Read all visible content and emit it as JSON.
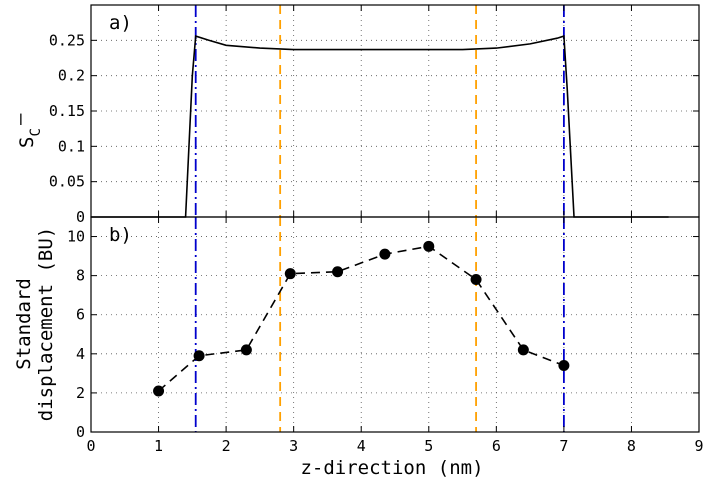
{
  "chart_data": [
    {
      "type": "line",
      "panel_label": "a)",
      "xlabel": "",
      "ylabel": "S",
      "ylabel_subscript": "C",
      "ylabel_overbar": "–",
      "xlim": [
        0,
        9
      ],
      "ylim": [
        0,
        0.3
      ],
      "yticks": [
        0,
        0.05,
        0.1,
        0.15,
        0.2,
        0.25
      ],
      "ytick_labels": [
        "0",
        "0.05",
        "0.1",
        "0.15",
        "0.2",
        "0.25"
      ],
      "grid": true,
      "series": [
        {
          "color": "#000000",
          "style": "solid",
          "x": [
            0,
            1.0,
            1.4,
            1.5,
            1.55,
            1.75,
            2.0,
            2.5,
            3.0,
            3.5,
            4.0,
            4.5,
            5.0,
            5.5,
            6.0,
            6.5,
            6.9,
            7.0,
            7.05,
            7.15,
            7.5,
            8.0,
            8.55
          ],
          "y": [
            0,
            0,
            0,
            0.2,
            0.256,
            0.25,
            0.243,
            0.239,
            0.237,
            0.237,
            0.237,
            0.237,
            0.237,
            0.237,
            0.239,
            0.245,
            0.253,
            0.256,
            0.18,
            0,
            0,
            0,
            0
          ]
        }
      ],
      "vlines": [
        {
          "x": 1.55,
          "color": "#0000cc",
          "style": "dashdot"
        },
        {
          "x": 2.8,
          "color": "#ffa000",
          "style": "dashed"
        },
        {
          "x": 5.7,
          "color": "#ffa000",
          "style": "dashed"
        },
        {
          "x": 7.0,
          "color": "#0000cc",
          "style": "dashdot"
        }
      ]
    },
    {
      "type": "scatter",
      "panel_label": "b)",
      "xlabel": "z-direction (nm)",
      "ylabel": "Standard displacement (BU)",
      "ylabel_lines": [
        "Standard",
        "displacement (BU)"
      ],
      "xlim": [
        0,
        9
      ],
      "ylim": [
        0,
        11
      ],
      "xticks": [
        0,
        1,
        2,
        3,
        4,
        5,
        6,
        7,
        8,
        9
      ],
      "xtick_labels": [
        "0",
        "1",
        "2",
        "3",
        "4",
        "5",
        "6",
        "7",
        "8",
        "9"
      ],
      "yticks": [
        0,
        2,
        4,
        6,
        8,
        10
      ],
      "ytick_labels": [
        "0",
        "2",
        "4",
        "6",
        "8",
        "10"
      ],
      "grid": true,
      "series": [
        {
          "color": "#000000",
          "style": "dashed",
          "marker": "circle",
          "x": [
            1.0,
            1.6,
            2.3,
            2.95,
            3.65,
            4.35,
            5.0,
            5.7,
            6.4,
            7.0
          ],
          "y": [
            2.1,
            3.9,
            4.2,
            8.1,
            8.2,
            9.1,
            9.5,
            7.8,
            4.2,
            3.4
          ]
        }
      ],
      "vlines": [
        {
          "x": 1.55,
          "color": "#0000cc",
          "style": "dashdot"
        },
        {
          "x": 2.8,
          "color": "#ffa000",
          "style": "dashed"
        },
        {
          "x": 5.7,
          "color": "#ffa000",
          "style": "dashed"
        },
        {
          "x": 7.0,
          "color": "#0000cc",
          "style": "dashdot"
        }
      ]
    }
  ]
}
